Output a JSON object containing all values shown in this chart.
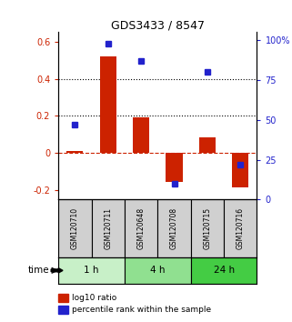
{
  "title": "GDS3433 / 8547",
  "samples": [
    "GSM120710",
    "GSM120711",
    "GSM120648",
    "GSM120708",
    "GSM120715",
    "GSM120716"
  ],
  "log10_ratio": [
    0.01,
    0.52,
    0.19,
    -0.155,
    0.085,
    -0.185
  ],
  "percentile_rank": [
    47,
    98,
    87,
    10,
    80,
    22
  ],
  "groups": [
    {
      "label": "1 h",
      "indices": [
        0,
        1
      ],
      "color": "#c8f0c8"
    },
    {
      "label": "4 h",
      "indices": [
        2,
        3
      ],
      "color": "#90e090"
    },
    {
      "label": "24 h",
      "indices": [
        4,
        5
      ],
      "color": "#44cc44"
    }
  ],
  "bar_color": "#cc2200",
  "dot_color": "#2222cc",
  "ylim_left": [
    -0.25,
    0.65
  ],
  "ylim_right": [
    0,
    105
  ],
  "yticks_left": [
    -0.2,
    0.0,
    0.2,
    0.4,
    0.6
  ],
  "ytick_labels_left": [
    "-0.2",
    "0",
    "0.2",
    "0.4",
    "0.6"
  ],
  "yticks_right": [
    0,
    25,
    50,
    75,
    100
  ],
  "ytick_labels_right": [
    "0",
    "25",
    "50",
    "75",
    "100%"
  ],
  "hlines": [
    0.2,
    0.4
  ],
  "zero_line_y": 0.0,
  "legend_items": [
    "log10 ratio",
    "percentile rank within the sample"
  ],
  "legend_colors": [
    "#cc2200",
    "#2222cc"
  ],
  "time_label": "time",
  "bar_width": 0.5
}
